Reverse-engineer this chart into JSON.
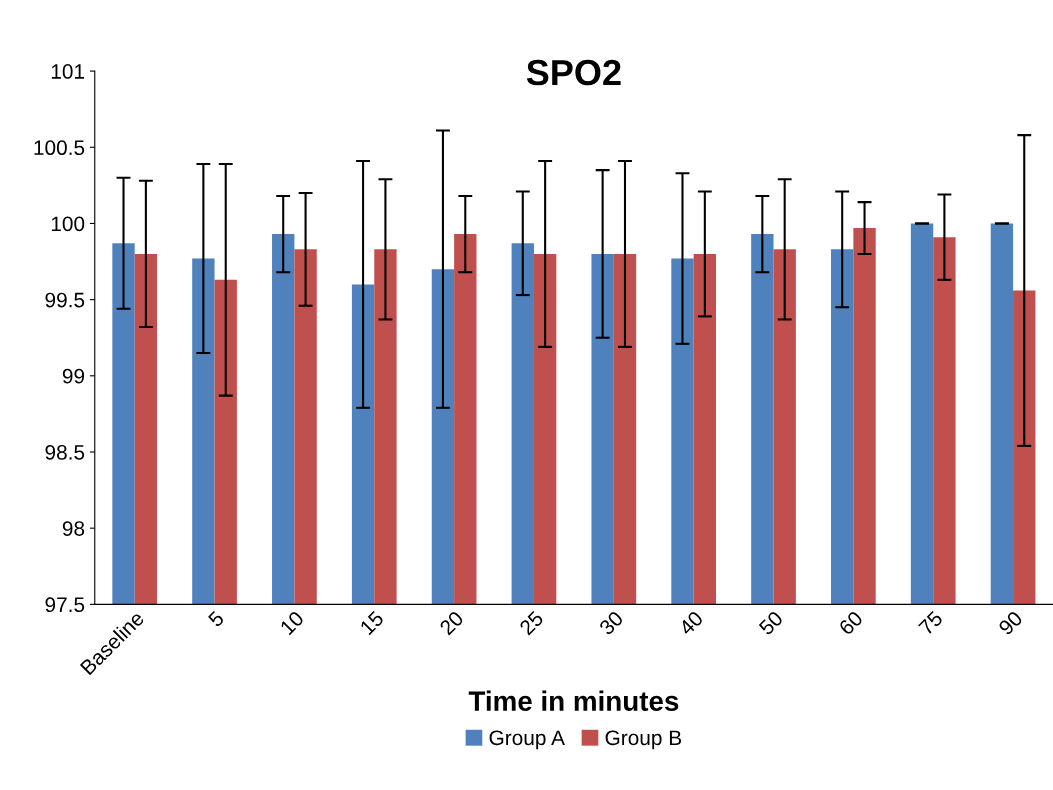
{
  "chart_data": {
    "type": "bar",
    "title": "SPO2",
    "xlabel": "Time in minutes",
    "categories": [
      "Baseline",
      "5",
      "10",
      "15",
      "20",
      "25",
      "30",
      "40",
      "50",
      "60",
      "75",
      "90"
    ],
    "series": [
      {
        "name": "Group A",
        "color": "#4f81bd",
        "values": [
          99.87,
          99.77,
          99.93,
          99.6,
          99.7,
          99.87,
          99.8,
          99.77,
          99.93,
          99.83,
          100.0,
          100.0
        ],
        "errors": [
          0.43,
          0.62,
          0.25,
          0.81,
          0.91,
          0.34,
          0.55,
          0.56,
          0.25,
          0.38,
          0,
          0
        ]
      },
      {
        "name": "Group B",
        "color": "#c0504d",
        "values": [
          99.8,
          99.63,
          99.83,
          99.83,
          99.93,
          99.8,
          99.8,
          99.8,
          99.83,
          99.97,
          99.91,
          99.56
        ],
        "errors": [
          0.48,
          0.76,
          0.37,
          0.46,
          0.25,
          0.61,
          0.61,
          0.41,
          0.46,
          0.17,
          0.28,
          1.02
        ]
      }
    ],
    "ylim": [
      97.5,
      101
    ],
    "yticks": [
      97.5,
      98,
      98.5,
      99,
      99.5,
      100,
      100.5,
      101
    ],
    "grid": false,
    "legend": "bottom"
  }
}
